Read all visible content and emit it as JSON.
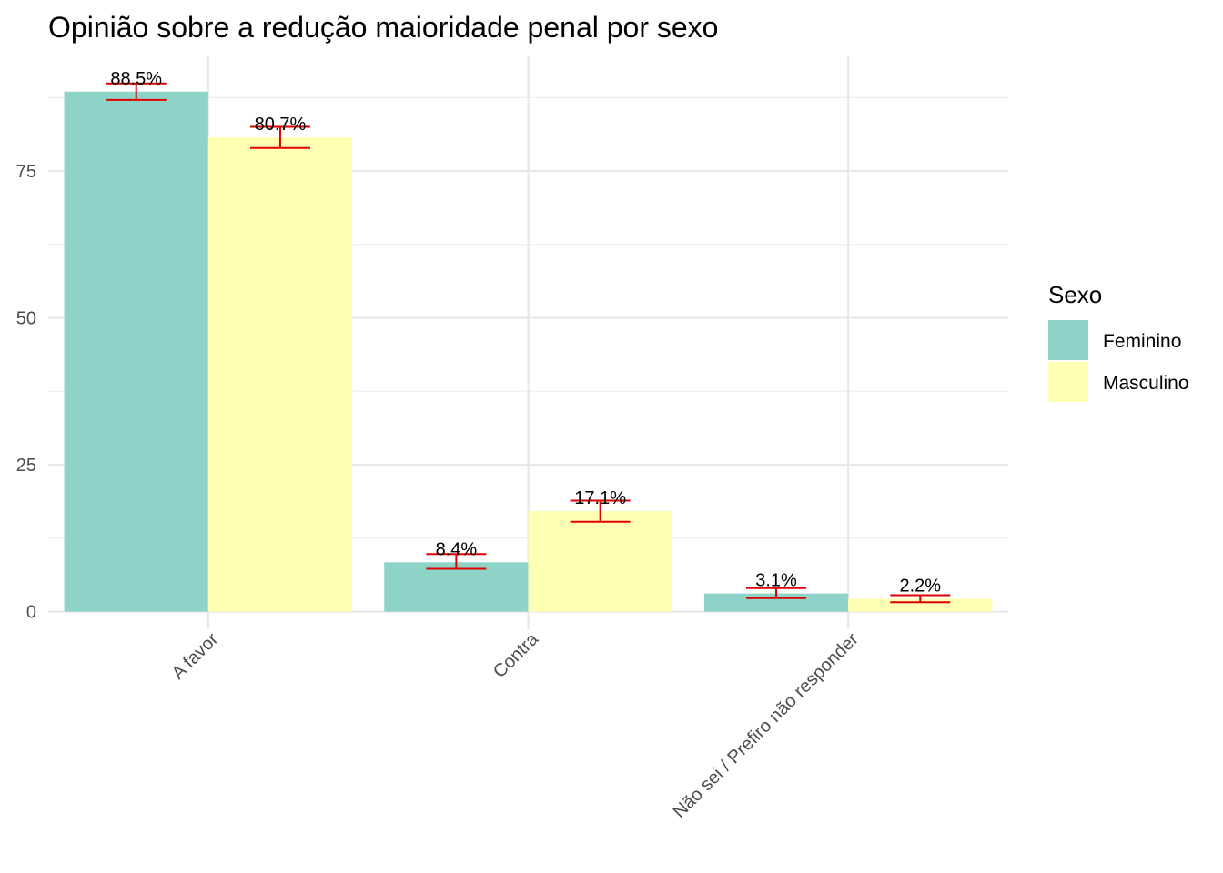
{
  "chart_data": {
    "type": "bar",
    "title": "Opinião sobre a redução maioridade penal por sexo",
    "xlabel": "",
    "ylabel": "",
    "categories": [
      "A favor",
      "Contra",
      "Não sei / Prefiro não responder"
    ],
    "series": [
      {
        "name": "Feminino",
        "color": "#8dd3c7",
        "values": [
          88.5,
          8.4,
          3.1
        ],
        "labels": [
          "88.5%",
          "8.4%",
          "3.1%"
        ],
        "error_low": [
          87.1,
          7.3,
          2.3
        ],
        "error_high": [
          89.9,
          9.8,
          4.0
        ]
      },
      {
        "name": "Masculino",
        "color": "#ffffb3",
        "values": [
          80.7,
          17.1,
          2.2
        ],
        "labels": [
          "80.7%",
          "17.1%",
          "2.2%"
        ],
        "error_low": [
          78.9,
          15.3,
          1.6
        ],
        "error_high": [
          82.5,
          18.9,
          2.8
        ]
      }
    ],
    "ylim": [
      -3,
      94.5
    ],
    "y_ticks": [
      0,
      25,
      50,
      75
    ],
    "y_tick_labels": [
      "0",
      "25",
      "50",
      "75"
    ],
    "grid": true,
    "legend": {
      "title": "Sexo",
      "position": "right"
    },
    "error_bar_color": "#e00000"
  }
}
